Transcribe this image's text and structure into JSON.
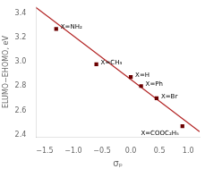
{
  "chart_data": {
    "type": "scatter",
    "xlabel": "σₚ",
    "ylabel": "ELUMO−EHOMO, eV",
    "series": [
      {
        "type": "line",
        "color": "#b22222",
        "line_style": "solid",
        "x": [
          -1.65,
          1.2
        ],
        "values": [
          3.4457,
          2.4254
        ]
      },
      {
        "type": "scatter",
        "color": "#6b0000",
        "marker": "square",
        "x": [
          -1.3,
          -0.6,
          0.0,
          0.18,
          0.45,
          0.9
        ],
        "values": [
          3.27,
          2.98,
          2.875,
          2.8,
          2.7,
          2.47
        ],
        "point_labels": [
          "X=NH₂",
          "X=CH₃",
          "X=H",
          "X=Ph",
          "X=Br",
          "X=COOC₂H₅"
        ]
      }
    ],
    "xlim": [
      -1.65,
      1.2
    ],
    "ylim": [
      2.38,
      3.45
    ],
    "xticks": [
      {
        "value": -1.5,
        "label": "−1.5"
      },
      {
        "value": -1.0,
        "label": "−1.0"
      },
      {
        "value": -0.5,
        "label": "−0.5"
      },
      {
        "value": 0.0,
        "label": "0.0"
      },
      0.5,
      {
        "value": 1.0,
        "label": "1.0"
      }
    ],
    "yticks": [
      2.4,
      2.6,
      2.8,
      {
        "value": 3.0,
        "label": "3.0"
      },
      3.2,
      3.4
    ],
    "grid": false
  }
}
